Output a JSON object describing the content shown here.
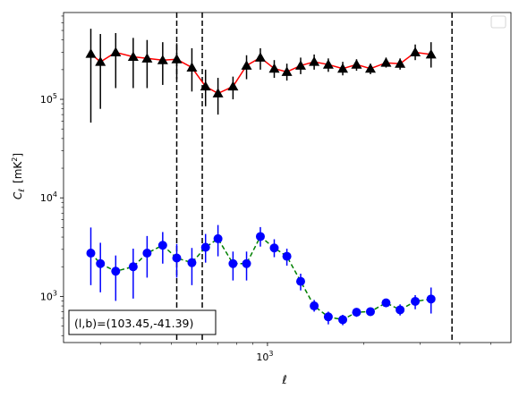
{
  "chart_data": {
    "type": "scatter",
    "xscale": "log",
    "yscale": "log",
    "xlim": [
      230,
      5780
    ],
    "ylim": [
      340,
      760000
    ],
    "xlabel": "ℓ",
    "ylabel_main": "C",
    "ylabel_sub": "ℓ",
    "ylabel_unit_prefix": "[mK",
    "ylabel_unit_sup": "2",
    "ylabel_unit_suffix": "]",
    "x_ticks": [
      {
        "value": 1000,
        "label_base": "10",
        "label_exp": "3"
      }
    ],
    "x_minor_ticks": [
      300,
      400,
      500,
      600,
      700,
      800,
      900,
      2000,
      3000,
      4000,
      5000
    ],
    "y_ticks": [
      {
        "value": 1000,
        "label_base": "10",
        "label_exp": "3"
      },
      {
        "value": 10000,
        "label_base": "10",
        "label_exp": "4"
      },
      {
        "value": 100000,
        "label_base": "10",
        "label_exp": "5"
      }
    ],
    "y_minor_ticks": [
      400,
      500,
      600,
      700,
      800,
      900,
      2000,
      3000,
      4000,
      5000,
      6000,
      7000,
      8000,
      9000,
      20000,
      30000,
      40000,
      50000,
      60000,
      70000,
      80000,
      90000,
      200000,
      300000,
      400000,
      500000,
      600000,
      700000
    ],
    "vlines": [
      520,
      625,
      3780
    ],
    "annotation": "(l,b)=(103.45,-41.39)",
    "legend": {
      "placement": "top-right",
      "entries": []
    },
    "series": [
      {
        "marker": "triangle",
        "marker_color": "#000000",
        "line_color": "#ff0000",
        "line_style": "solid",
        "errorbar_color": "#000000",
        "points": [
          {
            "x": 280,
            "y": 290000,
            "lo": 58000,
            "hi": 520000
          },
          {
            "x": 300,
            "y": 240000,
            "lo": 80000,
            "hi": 460000
          },
          {
            "x": 335,
            "y": 300000,
            "lo": 130000,
            "hi": 470000
          },
          {
            "x": 380,
            "y": 270000,
            "lo": 130000,
            "hi": 420000
          },
          {
            "x": 420,
            "y": 260000,
            "lo": 130000,
            "hi": 400000
          },
          {
            "x": 470,
            "y": 250000,
            "lo": 140000,
            "hi": 380000
          },
          {
            "x": 520,
            "y": 255000,
            "lo": 160000,
            "hi": 370000
          },
          {
            "x": 580,
            "y": 210000,
            "lo": 120000,
            "hi": 330000
          },
          {
            "x": 640,
            "y": 135000,
            "lo": 85000,
            "hi": 200000
          },
          {
            "x": 700,
            "y": 115000,
            "lo": 70000,
            "hi": 165000
          },
          {
            "x": 780,
            "y": 135000,
            "lo": 100000,
            "hi": 170000
          },
          {
            "x": 860,
            "y": 220000,
            "lo": 160000,
            "hi": 280000
          },
          {
            "x": 950,
            "y": 265000,
            "lo": 200000,
            "hi": 330000
          },
          {
            "x": 1050,
            "y": 205000,
            "lo": 165000,
            "hi": 250000
          },
          {
            "x": 1150,
            "y": 190000,
            "lo": 155000,
            "hi": 230000
          },
          {
            "x": 1270,
            "y": 220000,
            "lo": 180000,
            "hi": 265000
          },
          {
            "x": 1400,
            "y": 240000,
            "lo": 200000,
            "hi": 285000
          },
          {
            "x": 1550,
            "y": 225000,
            "lo": 190000,
            "hi": 260000
          },
          {
            "x": 1720,
            "y": 205000,
            "lo": 175000,
            "hi": 240000
          },
          {
            "x": 1900,
            "y": 225000,
            "lo": 195000,
            "hi": 255000
          },
          {
            "x": 2100,
            "y": 205000,
            "lo": 180000,
            "hi": 230000
          },
          {
            "x": 2350,
            "y": 235000,
            "lo": 210000,
            "hi": 265000
          },
          {
            "x": 2600,
            "y": 230000,
            "lo": 200000,
            "hi": 260000
          },
          {
            "x": 2900,
            "y": 300000,
            "lo": 250000,
            "hi": 360000
          },
          {
            "x": 3250,
            "y": 285000,
            "lo": 210000,
            "hi": 380000
          }
        ]
      },
      {
        "marker": "circle",
        "marker_color": "#0000ff",
        "line_color": "#008000",
        "line_style": "dashed",
        "errorbar_color": "#0000ff",
        "points": [
          {
            "x": 280,
            "y": 2750,
            "lo": 1300,
            "hi": 5000
          },
          {
            "x": 300,
            "y": 2150,
            "lo": 1100,
            "hi": 3500
          },
          {
            "x": 335,
            "y": 1800,
            "lo": 900,
            "hi": 2600
          },
          {
            "x": 380,
            "y": 2000,
            "lo": 950,
            "hi": 3050
          },
          {
            "x": 420,
            "y": 2750,
            "lo": 1550,
            "hi": 4100
          },
          {
            "x": 470,
            "y": 3300,
            "lo": 2150,
            "hi": 4500
          },
          {
            "x": 520,
            "y": 2450,
            "lo": 1550,
            "hi": 3400
          },
          {
            "x": 580,
            "y": 2200,
            "lo": 1300,
            "hi": 3100
          },
          {
            "x": 640,
            "y": 3150,
            "lo": 2200,
            "hi": 4300
          },
          {
            "x": 700,
            "y": 3850,
            "lo": 2550,
            "hi": 5300
          },
          {
            "x": 780,
            "y": 2150,
            "lo": 1450,
            "hi": 2850
          },
          {
            "x": 860,
            "y": 2150,
            "lo": 1450,
            "hi": 2850
          },
          {
            "x": 950,
            "y": 4050,
            "lo": 3200,
            "hi": 5050
          },
          {
            "x": 1050,
            "y": 3100,
            "lo": 2500,
            "hi": 3800
          },
          {
            "x": 1150,
            "y": 2550,
            "lo": 2050,
            "hi": 3050
          },
          {
            "x": 1270,
            "y": 1420,
            "lo": 1150,
            "hi": 1700
          },
          {
            "x": 1400,
            "y": 800,
            "lo": 700,
            "hi": 920
          },
          {
            "x": 1550,
            "y": 620,
            "lo": 520,
            "hi": 700
          },
          {
            "x": 1720,
            "y": 580,
            "lo": 510,
            "hi": 650
          },
          {
            "x": 1900,
            "y": 690,
            "lo": 620,
            "hi": 760
          },
          {
            "x": 2100,
            "y": 700,
            "lo": 640,
            "hi": 760
          },
          {
            "x": 2350,
            "y": 860,
            "lo": 790,
            "hi": 930
          },
          {
            "x": 2600,
            "y": 730,
            "lo": 640,
            "hi": 830
          },
          {
            "x": 2900,
            "y": 890,
            "lo": 740,
            "hi": 1030
          },
          {
            "x": 3250,
            "y": 940,
            "lo": 670,
            "hi": 1230
          }
        ]
      }
    ]
  }
}
